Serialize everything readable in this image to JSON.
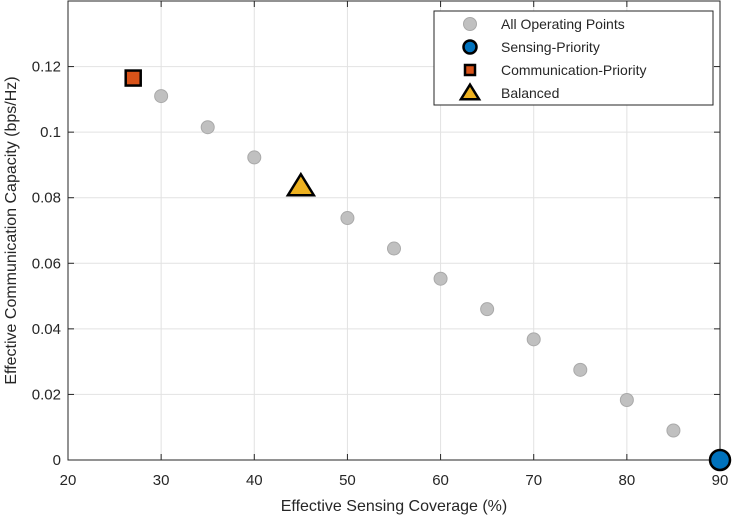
{
  "chart_data": {
    "type": "scatter",
    "title": "",
    "xlabel": "Effective Sensing Coverage (%)",
    "ylabel": "Effective Communication Capacity (bps/Hz)",
    "xlim": [
      20,
      90
    ],
    "ylim": [
      0,
      0.14
    ],
    "xticks": [
      20,
      30,
      40,
      50,
      60,
      70,
      80,
      90
    ],
    "yticks": [
      0,
      0.02,
      0.04,
      0.06,
      0.08,
      0.1,
      0.12
    ],
    "ytick_labels": [
      "0",
      "0.02",
      "0.04",
      "0.06",
      "0.08",
      "0.1",
      "0.12"
    ],
    "grid": true,
    "legend_position": "top-right",
    "series": [
      {
        "name": "All Operating Points",
        "marker": "circle",
        "color": "#c0c0c0",
        "edge_color": "#a9a9a9",
        "points": [
          {
            "x": 30,
            "y": 0.111
          },
          {
            "x": 35,
            "y": 0.1015
          },
          {
            "x": 40,
            "y": 0.0923
          },
          {
            "x": 50,
            "y": 0.0738
          },
          {
            "x": 55,
            "y": 0.0645
          },
          {
            "x": 60,
            "y": 0.0553
          },
          {
            "x": 65,
            "y": 0.046
          },
          {
            "x": 70,
            "y": 0.0368
          },
          {
            "x": 75,
            "y": 0.0275
          },
          {
            "x": 80,
            "y": 0.0183
          },
          {
            "x": 85,
            "y": 0.009
          }
        ]
      },
      {
        "name": "Sensing-Priority",
        "marker": "circle",
        "color": "#0072bd",
        "edge_color": "#000000",
        "points": [
          {
            "x": 90,
            "y": 0.0
          }
        ]
      },
      {
        "name": "Communication-Priority",
        "marker": "square",
        "color": "#d95319",
        "edge_color": "#000000",
        "points": [
          {
            "x": 27,
            "y": 0.1165
          }
        ]
      },
      {
        "name": "Balanced",
        "marker": "triangle",
        "color": "#edb120",
        "edge_color": "#000000",
        "points": [
          {
            "x": 45,
            "y": 0.0835
          }
        ]
      }
    ]
  }
}
